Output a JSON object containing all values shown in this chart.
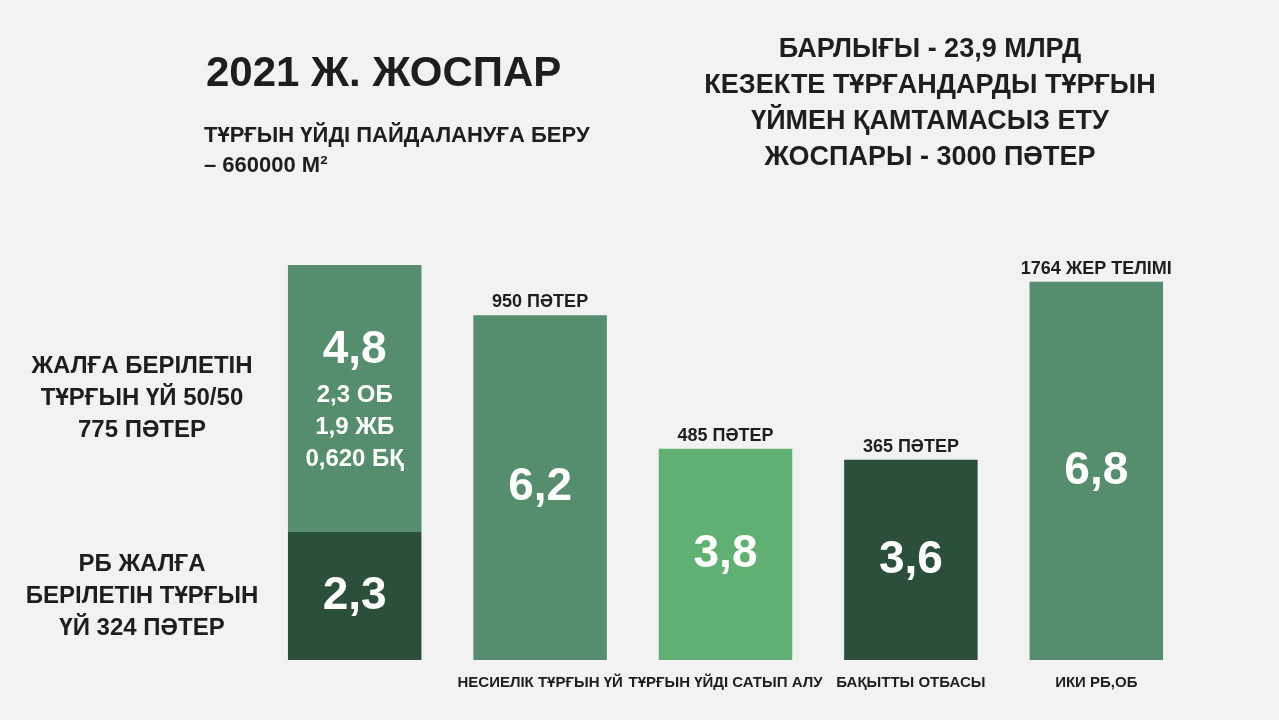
{
  "chart_data": {
    "type": "bar",
    "title": "2021 Ж. ЖОСПАР",
    "subtitle": "ТҰРҒЫН ҮЙДІ ПАЙДАЛАНУҒА БЕРУ – 660000 М²",
    "categories": [
      null,
      "НЕСИЕЛІК ТҰРҒЫН ҮЙ",
      "ТҰРҒЫН ҮЙДІ САТЫП АЛУ",
      "БАҚЫТТЫ ОТБАСЫ",
      "ИКИ РБ,ОБ"
    ],
    "stacked": true,
    "series": [
      {
        "name": "РБ ЖАЛҒА БЕРІЛЕТІН ТҰРҒЫН ҮЙ 324 ПӘТЕР",
        "color": "#2b4f3a",
        "values": [
          2.3,
          null,
          null,
          null,
          null
        ],
        "value_labels": [
          "2,3",
          null,
          null,
          null,
          null
        ]
      },
      {
        "name": "ЖАЛҒА БЕРІЛЕТІН ТҰРҒЫН ҮЙ 50/50 775 ПӘТЕР",
        "color": "#558d6e",
        "values": [
          4.8,
          null,
          null,
          null,
          null
        ],
        "value_labels": [
          "4,8\n2,3 ОБ\n1,9 ЖБ\n0,620 БҚ",
          null,
          null,
          null,
          null
        ]
      },
      {
        "colors": [
          "#558d6e",
          "#558d6e",
          "#5fb072",
          "#2b4f3a",
          "#558d6e"
        ],
        "values": [
          null,
          6.2,
          3.8,
          3.6,
          6.8
        ],
        "value_labels": [
          null,
          "6,2",
          "3,8",
          "3,6",
          "6,8"
        ]
      }
    ],
    "annotations": [
      "БАРЛЫҒЫ - 23,9 МЛРД",
      "КЕЗЕКТЕ ТҰРҒАНДАРДЫ ТҰРҒЫН ҮЙМЕН ҚАМТАМАСЫЗ ЕТУ ЖОСПАРЫ - 3000 ПӘТЕР",
      {
        "text": "950 ПӘТЕР",
        "x": "НЕСИЕЛІК ТҰРҒЫН ҮЙ",
        "y": 6.2
      },
      {
        "text": "485 ПӘТЕР",
        "x": "ТҰРҒЫН ҮЙДІ САТЫП АЛУ",
        "y": 3.8
      },
      {
        "text": "365 ПӘТЕР",
        "x": "БАҚЫТТЫ ОТБАСЫ",
        "y": 3.6
      },
      {
        "text": "1764 ЖЕР ТЕЛІМІ",
        "x": "ИКИ РБ,ОБ",
        "y": 6.8
      }
    ],
    "grid": false,
    "legend": false,
    "tick_labels": "x"
  }
}
